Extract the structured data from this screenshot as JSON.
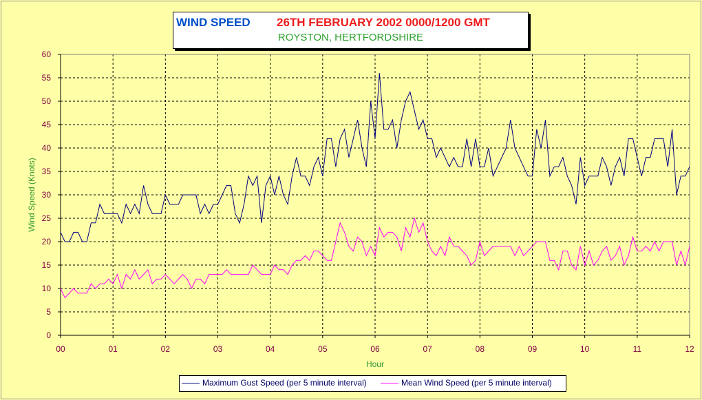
{
  "header": {
    "title": "WIND SPEED",
    "date_time": "26TH FEBRUARY  2002  0000/1200 GMT",
    "location": "ROYSTON, HERTFORDSHIRE"
  },
  "legend": {
    "gust_label": "Maximum Gust Speed (per 5 minute interval)",
    "mean_label": "Mean Wind Speed (per 5 minute interval)"
  },
  "colors": {
    "background": "#ffffa8",
    "gust": "#000080",
    "mean": "#ff00ff",
    "axis_labels": "#800040",
    "axis_titles": "#339933",
    "grid": "#000000"
  },
  "chart_data": {
    "type": "line",
    "title": "WIND SPEED",
    "xlabel": "Hour",
    "ylabel": "Wind Speed (Knots)",
    "xlim": [
      0,
      12
    ],
    "ylim": [
      0,
      60
    ],
    "x_ticks": [
      "00",
      "01",
      "02",
      "03",
      "04",
      "05",
      "06",
      "07",
      "08",
      "09",
      "10",
      "11",
      "12"
    ],
    "y_ticks": [
      0,
      5,
      10,
      15,
      20,
      25,
      30,
      35,
      40,
      45,
      50,
      55,
      60
    ],
    "grid": true,
    "legend_position": "bottom-center",
    "interval_minutes": 5,
    "series": [
      {
        "name": "Maximum Gust Speed (per 5 minute interval)",
        "color": "#000080",
        "values": [
          22,
          20,
          20,
          22,
          22,
          20,
          20,
          24,
          24,
          28,
          26,
          26,
          26,
          26,
          24,
          28,
          26,
          28,
          26,
          32,
          28,
          26,
          26,
          26,
          30,
          28,
          28,
          28,
          30,
          30,
          30,
          30,
          26,
          28,
          26,
          28,
          28,
          30,
          32,
          32,
          26,
          24,
          28,
          34,
          32,
          34,
          24,
          32,
          34,
          30,
          34,
          30,
          28,
          34,
          38,
          34,
          34,
          32,
          36,
          38,
          34,
          42,
          42,
          36,
          42,
          44,
          38,
          42,
          46,
          40,
          36,
          50,
          42,
          56,
          44,
          44,
          46,
          40,
          46,
          50,
          52,
          48,
          44,
          46,
          42,
          42,
          38,
          40,
          38,
          36,
          38,
          36,
          36,
          42,
          36,
          42,
          36,
          36,
          40,
          34,
          36,
          38,
          40,
          46,
          40,
          38,
          36,
          34,
          34,
          44,
          40,
          46,
          34,
          36,
          36,
          38,
          34,
          32,
          28,
          38,
          32,
          34,
          34,
          34,
          38,
          36,
          32,
          36,
          38,
          34,
          42,
          42,
          38,
          34,
          38,
          38,
          42,
          42,
          42,
          36,
          44,
          30,
          34,
          34,
          36
        ],
        "max": 56
      },
      {
        "name": "Mean Wind Speed (per 5 minute interval)",
        "color": "#ff00ff",
        "values": [
          10,
          8,
          9,
          10,
          9,
          9,
          9,
          11,
          10,
          11,
          11,
          12,
          11,
          13,
          10,
          13,
          12,
          14,
          12,
          13,
          14,
          11,
          12,
          12,
          13,
          12,
          11,
          12,
          13,
          12,
          10,
          12,
          12,
          11,
          13,
          13,
          13,
          13,
          14,
          13,
          13,
          13,
          13,
          13,
          15,
          14,
          13,
          13,
          13,
          15,
          14,
          14,
          13,
          15,
          16,
          16,
          17,
          16,
          18,
          18,
          17,
          16,
          16,
          20,
          24,
          22,
          19,
          18,
          21,
          20,
          17,
          19,
          17,
          23,
          21,
          22,
          22,
          21,
          18,
          23,
          21,
          25,
          22,
          24,
          20,
          18,
          17,
          19,
          17,
          21,
          19,
          19,
          18,
          17,
          15,
          16,
          20,
          17,
          18,
          19,
          19,
          19,
          19,
          19,
          17,
          19,
          17,
          18,
          19,
          20,
          20,
          20,
          16,
          16,
          14,
          18,
          18,
          15,
          14,
          19,
          15,
          18,
          15,
          16,
          18,
          19,
          16,
          17,
          19,
          15,
          17,
          21,
          18,
          18,
          19,
          18,
          20,
          18,
          20,
          20,
          20,
          15,
          18,
          15,
          19
        ]
      }
    ]
  }
}
